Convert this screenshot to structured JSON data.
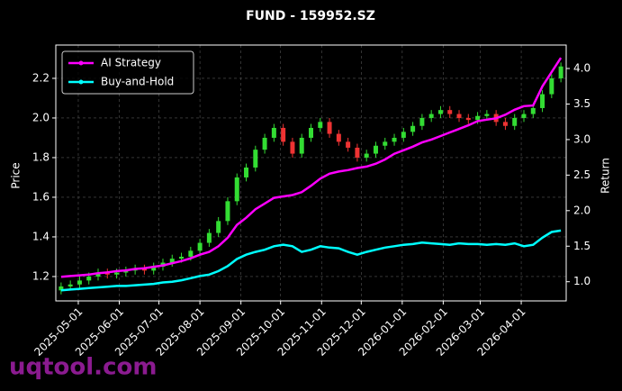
{
  "chart_data": {
    "type": "candlestick",
    "title": "FUND - 159952.SZ",
    "ylabel": "Price",
    "y2label": "Return",
    "watermark": "uqtool.com",
    "x": [
      "2025-04-18",
      "2025-04-25",
      "2025-05-02",
      "2025-05-09",
      "2025-05-16",
      "2025-05-23",
      "2025-05-30",
      "2025-06-06",
      "2025-06-13",
      "2025-06-20",
      "2025-06-27",
      "2025-07-04",
      "2025-07-11",
      "2025-07-18",
      "2025-07-25",
      "2025-08-01",
      "2025-08-08",
      "2025-08-15",
      "2025-08-22",
      "2025-08-29",
      "2025-09-05",
      "2025-09-12",
      "2025-09-19",
      "2025-09-26",
      "2025-10-03",
      "2025-10-10",
      "2025-10-17",
      "2025-10-24",
      "2025-10-31",
      "2025-11-07",
      "2025-11-14",
      "2025-11-21",
      "2025-11-28",
      "2025-12-05",
      "2025-12-12",
      "2025-12-19",
      "2025-12-26",
      "2026-01-02",
      "2026-01-09",
      "2026-01-16",
      "2026-01-23",
      "2026-01-30",
      "2026-02-06",
      "2026-02-13",
      "2026-02-20",
      "2026-02-27",
      "2026-03-06",
      "2026-03-13",
      "2026-03-20",
      "2026-03-27",
      "2026-04-03",
      "2026-04-10",
      "2026-04-17",
      "2026-04-24",
      "2026-05-01"
    ],
    "open": [
      1.13,
      1.15,
      1.16,
      1.18,
      1.2,
      1.22,
      1.21,
      1.22,
      1.23,
      1.24,
      1.23,
      1.25,
      1.27,
      1.29,
      1.3,
      1.33,
      1.37,
      1.42,
      1.48,
      1.58,
      1.7,
      1.75,
      1.84,
      1.9,
      1.95,
      1.88,
      1.82,
      1.9,
      1.95,
      1.98,
      1.92,
      1.88,
      1.85,
      1.8,
      1.82,
      1.86,
      1.88,
      1.9,
      1.93,
      1.96,
      2.0,
      2.02,
      2.04,
      2.02,
      2.0,
      1.99,
      2.01,
      2.02,
      1.98,
      1.96,
      2.0,
      2.02,
      2.05,
      2.12,
      2.2
    ],
    "close": [
      1.15,
      1.16,
      1.18,
      1.2,
      1.22,
      1.21,
      1.22,
      1.23,
      1.24,
      1.23,
      1.25,
      1.27,
      1.29,
      1.3,
      1.33,
      1.37,
      1.42,
      1.48,
      1.58,
      1.7,
      1.75,
      1.84,
      1.9,
      1.95,
      1.88,
      1.82,
      1.9,
      1.95,
      1.98,
      1.92,
      1.88,
      1.85,
      1.8,
      1.82,
      1.86,
      1.88,
      1.9,
      1.93,
      1.96,
      2.0,
      2.02,
      2.04,
      2.02,
      2.0,
      1.99,
      2.01,
      2.02,
      1.98,
      1.96,
      2.0,
      2.02,
      2.05,
      2.12,
      2.2,
      2.26
    ],
    "high": [
      1.17,
      1.18,
      1.2,
      1.22,
      1.24,
      1.24,
      1.24,
      1.25,
      1.26,
      1.26,
      1.27,
      1.29,
      1.31,
      1.32,
      1.35,
      1.39,
      1.44,
      1.5,
      1.6,
      1.72,
      1.77,
      1.86,
      1.92,
      1.97,
      1.97,
      1.9,
      1.92,
      1.97,
      2.0,
      2.0,
      1.94,
      1.9,
      1.87,
      1.84,
      1.88,
      1.9,
      1.92,
      1.95,
      1.98,
      2.02,
      2.04,
      2.06,
      2.06,
      2.04,
      2.02,
      2.03,
      2.04,
      2.04,
      2.0,
      2.02,
      2.04,
      2.07,
      2.14,
      2.22,
      2.28
    ],
    "low": [
      1.11,
      1.13,
      1.14,
      1.16,
      1.18,
      1.19,
      1.19,
      1.2,
      1.21,
      1.21,
      1.21,
      1.23,
      1.25,
      1.27,
      1.28,
      1.31,
      1.35,
      1.4,
      1.46,
      1.56,
      1.68,
      1.73,
      1.82,
      1.88,
      1.86,
      1.8,
      1.8,
      1.88,
      1.93,
      1.9,
      1.86,
      1.83,
      1.78,
      1.78,
      1.8,
      1.84,
      1.86,
      1.88,
      1.91,
      1.94,
      1.98,
      2.0,
      2.0,
      1.98,
      1.97,
      1.97,
      1.99,
      1.96,
      1.94,
      1.94,
      1.98,
      2.0,
      2.03,
      2.1,
      2.18
    ],
    "up_color": "#33dd33",
    "down_color": "#ee3333",
    "series": [
      {
        "name": "AI Strategy",
        "color": "#ff00ff",
        "axis": "y2",
        "values": [
          1.07,
          1.08,
          1.09,
          1.1,
          1.12,
          1.13,
          1.15,
          1.16,
          1.18,
          1.19,
          1.21,
          1.23,
          1.26,
          1.29,
          1.33,
          1.38,
          1.42,
          1.5,
          1.62,
          1.8,
          1.9,
          2.02,
          2.1,
          2.18,
          2.2,
          2.22,
          2.26,
          2.35,
          2.45,
          2.52,
          2.55,
          2.57,
          2.6,
          2.62,
          2.66,
          2.72,
          2.8,
          2.85,
          2.9,
          2.96,
          3.0,
          3.05,
          3.1,
          3.15,
          3.2,
          3.26,
          3.28,
          3.3,
          3.35,
          3.42,
          3.47,
          3.48,
          3.75,
          3.95,
          4.15
        ]
      },
      {
        "name": "Buy-and-Hold",
        "color": "#00ffff",
        "axis": "y2",
        "values": [
          0.88,
          0.89,
          0.9,
          0.91,
          0.92,
          0.93,
          0.94,
          0.94,
          0.95,
          0.96,
          0.97,
          0.99,
          1.0,
          1.02,
          1.05,
          1.08,
          1.1,
          1.15,
          1.22,
          1.32,
          1.38,
          1.42,
          1.45,
          1.5,
          1.52,
          1.5,
          1.42,
          1.45,
          1.5,
          1.48,
          1.47,
          1.42,
          1.38,
          1.42,
          1.45,
          1.48,
          1.5,
          1.52,
          1.53,
          1.55,
          1.54,
          1.53,
          1.52,
          1.54,
          1.53,
          1.53,
          1.52,
          1.53,
          1.52,
          1.54,
          1.5,
          1.52,
          1.62,
          1.7,
          1.72
        ]
      }
    ],
    "xlim": [
      "2025-04-14",
      "2026-05-05"
    ],
    "xticks": [
      "2025-05-01",
      "2025-06-01",
      "2025-07-01",
      "2025-08-01",
      "2025-09-01",
      "2025-10-01",
      "2025-11-01",
      "2025-12-01",
      "2026-01-01",
      "2026-02-01",
      "2026-03-01",
      "2026-04-01"
    ],
    "ylim": [
      1.077,
      2.368
    ],
    "yticks": [
      1.2,
      1.4,
      1.6,
      1.8,
      {
        "value": 2,
        "label": "2.0"
      },
      2.2
    ],
    "y2lim": [
      0.73,
      4.33
    ],
    "y2ticks": [
      {
        "value": 1,
        "label": "1.0"
      },
      1.5,
      {
        "value": 2,
        "label": "2.0"
      },
      2.5,
      {
        "value": 3,
        "label": "3.0"
      },
      3.5,
      {
        "value": 4,
        "label": "4.0"
      }
    ],
    "grid": true,
    "legend": "upper left"
  }
}
